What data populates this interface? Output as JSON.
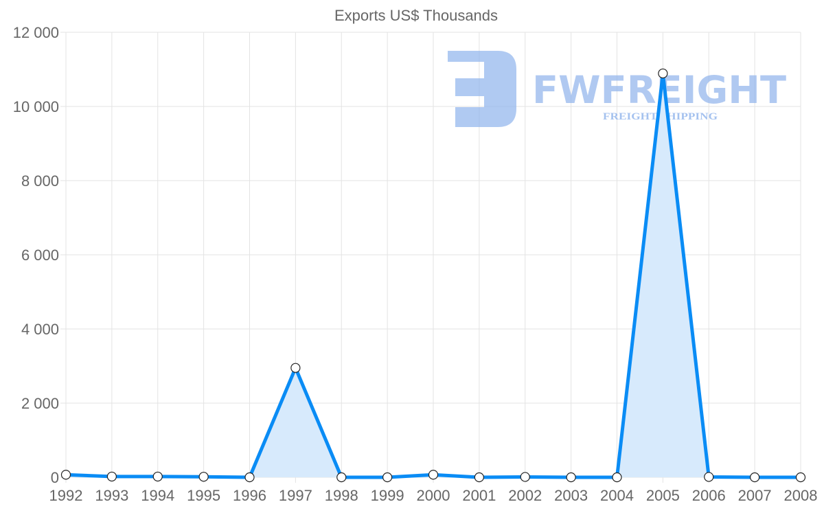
{
  "chart_data": {
    "type": "line",
    "title": "Exports US$ Thousands",
    "xlabel": "",
    "ylabel": "",
    "categories": [
      "1992",
      "1993",
      "1994",
      "1995",
      "1996",
      "1997",
      "1998",
      "1999",
      "2000",
      "2001",
      "2002",
      "2003",
      "2004",
      "2005",
      "2006",
      "2007",
      "2008"
    ],
    "series": [
      {
        "name": "Exports US$ Thousands",
        "values": [
          70,
          20,
          20,
          15,
          0,
          2950,
          0,
          0,
          70,
          0,
          10,
          0,
          0,
          10890,
          10,
          0,
          0
        ],
        "color": "#0a8cf5",
        "fill": "#d7eafc"
      }
    ],
    "ylim": [
      0,
      12000
    ],
    "yticks": [
      0,
      2000,
      4000,
      6000,
      8000,
      10000,
      12000
    ],
    "ytick_labels": [
      "0",
      "2 000",
      "4 000",
      "6 000",
      "8 000",
      "10 000",
      "12 000"
    ],
    "grid": true,
    "legend": "none"
  },
  "watermark": {
    "brand": "FWFREIGHT",
    "tagline": "FREIGHT SHIPPING"
  }
}
